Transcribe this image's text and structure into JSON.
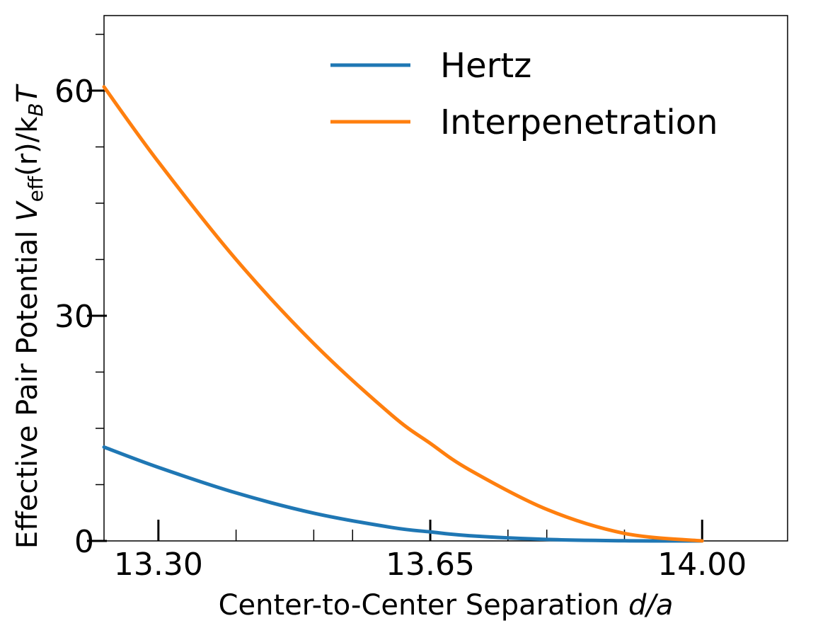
{
  "chart_data": {
    "type": "line",
    "title": "",
    "xlabel_prefix": "Center-to-Center Separation ",
    "xlabel_var": "d/a",
    "ylabel_prefix": "Effective Pair Potential ",
    "ylabel_V": "V",
    "ylabel_sub": "eff",
    "ylabel_mid": "(r)/k",
    "ylabel_sub2": "B",
    "ylabel_T": "T",
    "xlim": [
      13.23,
      14.11
    ],
    "ylim": [
      0,
      70
    ],
    "xticks_major": [
      13.3,
      13.65,
      14.0
    ],
    "xtick_labels": [
      "13.30",
      "13.65",
      "14.00"
    ],
    "xticks_minor": [
      13.4,
      13.5,
      13.55,
      13.75,
      13.8,
      13.9
    ],
    "yticks_major": [
      0,
      30,
      60
    ],
    "ytick_labels": [
      "0",
      "30",
      "60"
    ],
    "yticks_minor": [
      7.5,
      15,
      22.5,
      37.5,
      45,
      52.5,
      67.5
    ],
    "legend_position": "upper-right",
    "series": [
      {
        "name": "Hertz",
        "color": "#1f77b4",
        "x": [
          13.23,
          13.3,
          13.4,
          13.5,
          13.6,
          13.65,
          13.7,
          13.8,
          13.9,
          14.0
        ],
        "y": [
          12.5,
          9.8,
          6.4,
          3.7,
          1.8,
          1.2,
          0.7,
          0.2,
          0.02,
          0.0
        ]
      },
      {
        "name": "Interpenetration",
        "color": "#ff7f0e",
        "x": [
          13.23,
          13.3,
          13.4,
          13.5,
          13.6,
          13.65,
          13.7,
          13.8,
          13.9,
          14.0
        ],
        "y": [
          60.5,
          50.5,
          37.5,
          26.3,
          16.8,
          13.0,
          9.5,
          4.2,
          1.0,
          0.0
        ]
      }
    ]
  }
}
